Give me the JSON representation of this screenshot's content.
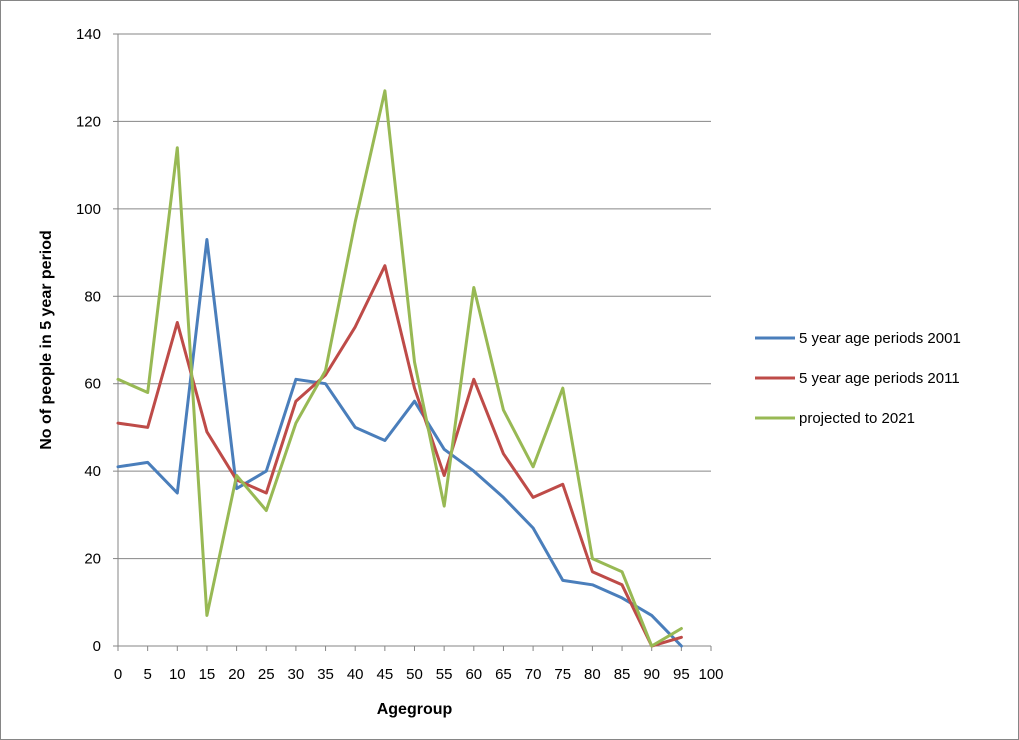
{
  "chart_data": {
    "type": "line",
    "title": "",
    "xlabel": "Agegroup",
    "ylabel": "No of people in 5 year period",
    "x": [
      0,
      5,
      10,
      15,
      20,
      25,
      30,
      35,
      40,
      45,
      50,
      55,
      60,
      65,
      70,
      75,
      80,
      85,
      90,
      95
    ],
    "xticks": [
      0,
      5,
      10,
      15,
      20,
      25,
      30,
      35,
      40,
      45,
      50,
      55,
      60,
      65,
      70,
      75,
      80,
      85,
      90,
      95,
      100
    ],
    "xlim": [
      0,
      100
    ],
    "yticks": [
      0,
      20,
      40,
      60,
      80,
      100,
      120,
      140
    ],
    "ylim": [
      0,
      140
    ],
    "grid": "horizontal",
    "legend_position": "right",
    "series": [
      {
        "name": "5 year age periods 2001",
        "color": "#4a7ebb",
        "values": [
          41,
          42,
          35,
          93,
          36,
          40,
          61,
          60,
          50,
          47,
          56,
          45,
          40,
          34,
          27,
          15,
          14,
          11,
          7,
          0
        ]
      },
      {
        "name": "5 year age periods 2011",
        "color": "#be4b48",
        "values": [
          51,
          50,
          74,
          49,
          38,
          35,
          56,
          62,
          73,
          87,
          59,
          39,
          61,
          44,
          34,
          37,
          17,
          14,
          0,
          2
        ]
      },
      {
        "name": "projected to 2021",
        "color": "#98b954",
        "values": [
          61,
          58,
          114,
          7,
          39,
          31,
          51,
          63,
          97,
          127,
          65,
          32,
          82,
          54,
          41,
          59,
          20,
          17,
          0,
          4
        ]
      }
    ]
  }
}
